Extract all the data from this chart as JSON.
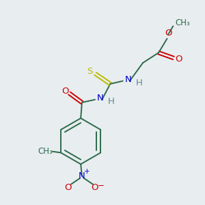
{
  "bg_color": "#e8edf0",
  "bond_color": "#2d6b4a",
  "atom_colors": {
    "O": "#cc0000",
    "N": "#0000cc",
    "S": "#bbbb00",
    "H": "#5a8a8a",
    "C": "#2d6b4a"
  },
  "lw": 1.4,
  "fs": 9.5
}
